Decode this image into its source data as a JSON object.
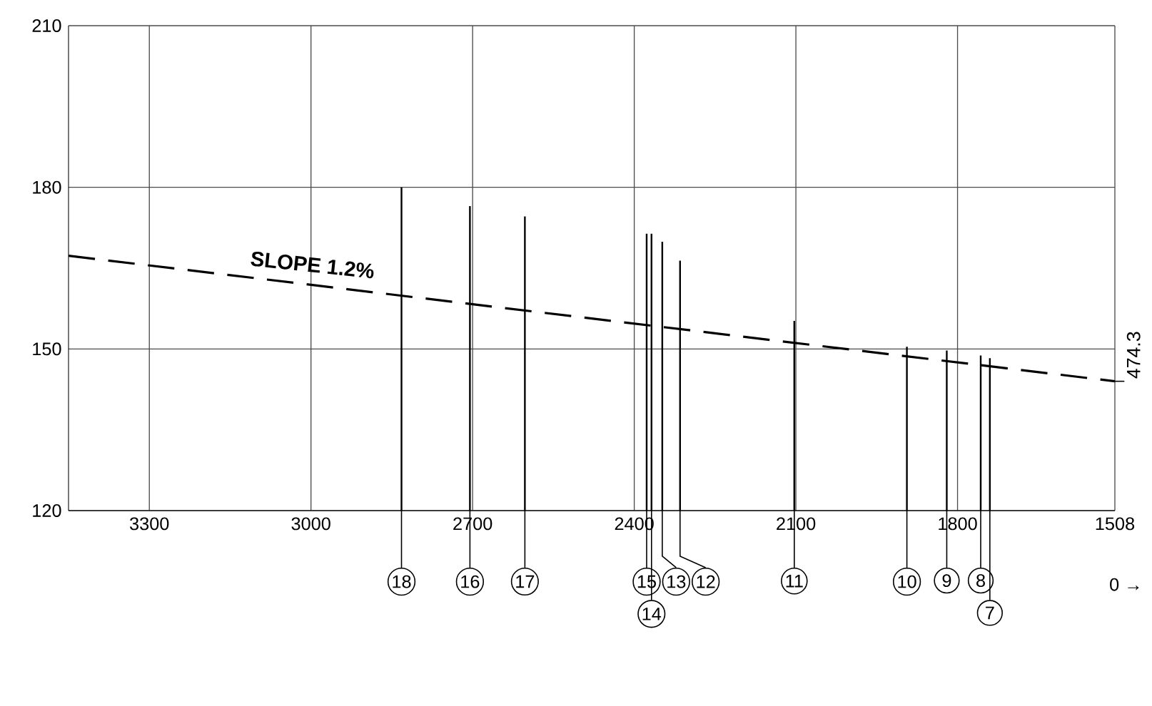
{
  "chart_data": {
    "type": "line",
    "xlim": [
      3450,
      1508
    ],
    "ylim": [
      120,
      210
    ],
    "xticks": [
      3300,
      3000,
      2700,
      2400,
      2100,
      1800,
      1508
    ],
    "yticks": [
      120,
      150,
      180,
      210
    ],
    "grid": true,
    "annotations": [
      {
        "text": "SLOPE 1.2%",
        "x": 3000,
        "y": 163
      },
      {
        "text": "474.3",
        "x": 1508,
        "y": 144
      },
      "0 →",
      {
        "text": "18",
        "x": 2832,
        "y": 120
      },
      {
        "text": "16",
        "x": 2705,
        "y": 120
      },
      {
        "text": "17",
        "x": 2603,
        "y": 120
      },
      {
        "text": "15",
        "x": 2377,
        "y": 120
      },
      {
        "text": "14",
        "x": 2368,
        "y": 120
      },
      {
        "text": "13",
        "x": 2348,
        "y": 120
      },
      {
        "text": "12",
        "x": 2315,
        "y": 120
      },
      {
        "text": "11",
        "x": 2103,
        "y": 120
      },
      {
        "text": "10",
        "x": 1894,
        "y": 120
      },
      {
        "text": "9",
        "x": 1820,
        "y": 120
      },
      {
        "text": "8",
        "x": 1757,
        "y": 120
      },
      {
        "text": "7",
        "x": 1740,
        "y": 120
      }
    ],
    "series": [
      {
        "line_style": "dashed",
        "marker": "none",
        "color": "#000000",
        "x": [
          3450,
          1508
        ],
        "values": [
          167.3,
          144
        ]
      },
      {
        "type": "bar",
        "color": "#000000",
        "x": [
          2832,
          2705,
          2603,
          2377,
          2368,
          2348,
          2315,
          2103,
          1894,
          1820,
          1757,
          1740
        ],
        "values": [
          180,
          176.5,
          174.6,
          171.4,
          171.4,
          169.9,
          166.4,
          155.2,
          150.4,
          149.7,
          148.8,
          148.3
        ]
      }
    ]
  }
}
